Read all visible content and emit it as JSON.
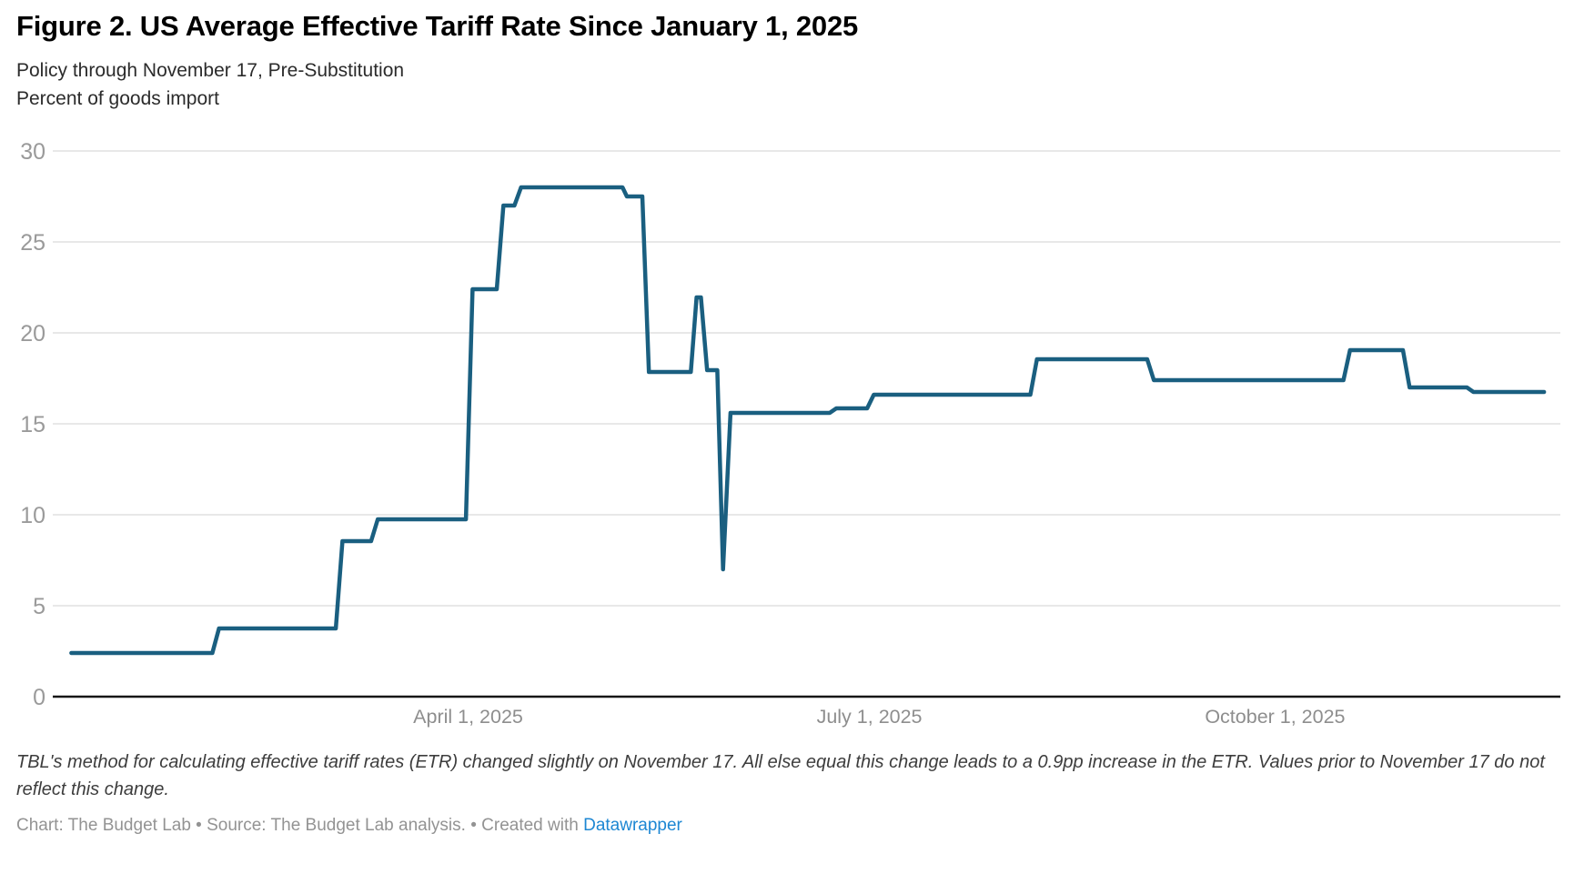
{
  "header": {
    "title": "Figure 2. US Average Effective Tariff Rate Since January 1, 2025",
    "subtitle_line1": "Policy through November 17, Pre-Substitution",
    "subtitle_line2": "Percent of goods import"
  },
  "chart_data": {
    "type": "line",
    "title": "US Average Effective Tariff Rate Since January 1, 2025",
    "xlabel": "",
    "ylabel": "Percent of goods import",
    "x_unit": "days since January 1, 2025",
    "x_range": [
      -4.2,
      337.7
    ],
    "y_range": [
      0,
      30
    ],
    "grid": true,
    "legend": "none",
    "y_ticks": [
      0,
      5,
      10,
      15,
      20,
      25,
      30
    ],
    "x_ticks": [
      {
        "day": 90,
        "label": "April 1, 2025"
      },
      {
        "day": 181,
        "label": "July 1, 2025"
      },
      {
        "day": 273,
        "label": "October 1, 2025"
      }
    ],
    "line_color": "#1a5f80",
    "grid_color": "#e0e0e0",
    "axis_color": "#161616",
    "y_label_color": "#9a9a9a",
    "x_label_color": "#8e8e8e",
    "series": [
      {
        "name": "US average effective tariff rate (% of goods imports)",
        "points": [
          [
            0,
            2.4
          ],
          [
            32,
            2.4
          ],
          [
            33.5,
            3.75
          ],
          [
            60,
            3.75
          ],
          [
            61.5,
            8.55
          ],
          [
            68,
            8.55
          ],
          [
            69.5,
            9.75
          ],
          [
            89.5,
            9.75
          ],
          [
            91,
            22.4
          ],
          [
            96.5,
            22.4
          ],
          [
            98,
            27.0
          ],
          [
            100.5,
            27.0
          ],
          [
            102,
            28.0
          ],
          [
            125,
            28.0
          ],
          [
            126,
            27.5
          ],
          [
            129.5,
            27.5
          ],
          [
            131,
            17.85
          ],
          [
            140.5,
            17.85
          ],
          [
            141.8,
            21.95
          ],
          [
            142.8,
            21.95
          ],
          [
            144.2,
            17.95
          ],
          [
            146.5,
            17.95
          ],
          [
            147.8,
            7.0
          ],
          [
            149.5,
            15.6
          ],
          [
            172,
            15.6
          ],
          [
            173.5,
            15.85
          ],
          [
            180.5,
            15.85
          ],
          [
            182,
            16.6
          ],
          [
            217.5,
            16.6
          ],
          [
            219,
            18.55
          ],
          [
            244,
            18.55
          ],
          [
            245.5,
            17.4
          ],
          [
            288.5,
            17.4
          ],
          [
            290,
            19.05
          ],
          [
            302,
            19.05
          ],
          [
            303.5,
            17.0
          ],
          [
            316.5,
            17.0
          ],
          [
            318,
            16.75
          ],
          [
            334,
            16.75
          ]
        ]
      }
    ]
  },
  "footer": {
    "footnote": "TBL's method for calculating effective tariff rates (ETR) changed slightly on November 17. All else equal this change leads to a 0.9pp increase in the ETR. Values prior to November 17 do not reflect this change.",
    "caption_prefix": "Chart: The Budget Lab • Source: The Budget Lab analysis. • Created with ",
    "caption_link_text": "Datawrapper"
  }
}
